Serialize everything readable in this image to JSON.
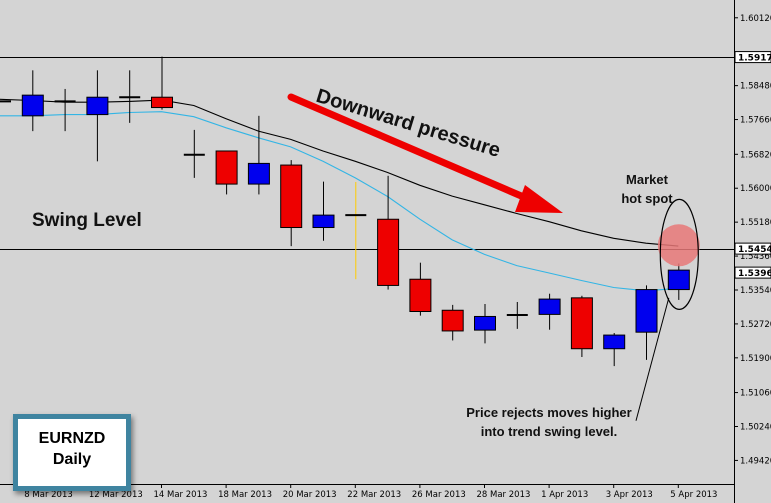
{
  "chart_data": {
    "type": "candlestick",
    "symbol": "EURNZD",
    "timeframe": "Daily",
    "colors": {
      "bull": "#0000ee",
      "bear": "#ee0000",
      "doji": "#ffcc00",
      "ema_fast": "#33b5e5",
      "ema_slow": "#000000",
      "hotspot": "#e87878"
    },
    "ylim": [
      1.4885,
      1.6055
    ],
    "yticks": [
      "1.60120",
      "1.58480",
      "1.57660",
      "1.56820",
      "1.56000",
      "1.55180",
      "1.54360",
      "1.53540",
      "1.52720",
      "1.51900",
      "1.51060",
      "1.50240",
      "1.49420"
    ],
    "xlabels": [
      "8 Mar 2013",
      "12 Mar 2013",
      "14 Mar 2013",
      "18 Mar 2013",
      "20 Mar 2013",
      "22 Mar 2013",
      "26 Mar 2013",
      "28 Mar 2013",
      "1 Apr 2013",
      "3 Apr 2013",
      "5 Apr 2013"
    ],
    "price_tags": [
      {
        "value": 1.5917,
        "label": "1.5917"
      },
      {
        "value": 1.5454,
        "label": "1.5454"
      },
      {
        "value": 1.5396,
        "label": "1.5396"
      }
    ],
    "horizontal_levels": [
      1.5917,
      1.5454
    ],
    "candles": [
      {
        "date": "7 Mar",
        "open": 1.581,
        "high": 1.581,
        "low": 1.581,
        "close": 1.581
      },
      {
        "date": "8 Mar",
        "open": 1.5775,
        "high": 1.5885,
        "low": 1.5738,
        "close": 1.5825
      },
      {
        "date": "11 Mar",
        "open": 1.581,
        "high": 1.584,
        "low": 1.5738,
        "close": 1.581
      },
      {
        "date": "12 Mar",
        "open": 1.5778,
        "high": 1.5885,
        "low": 1.5665,
        "close": 1.582
      },
      {
        "date": "13 Mar",
        "open": 1.5818,
        "high": 1.5885,
        "low": 1.5758,
        "close": 1.5822
      },
      {
        "date": "14 Mar",
        "open": 1.582,
        "high": 1.5918,
        "low": 1.579,
        "close": 1.5795
      },
      {
        "date": "15 Mar",
        "open": 1.5684,
        "high": 1.5741,
        "low": 1.5625,
        "close": 1.5678
      },
      {
        "date": "18 Mar",
        "open": 1.569,
        "high": 1.5691,
        "low": 1.5585,
        "close": 1.561
      },
      {
        "date": "19 Mar",
        "open": 1.561,
        "high": 1.5775,
        "low": 1.5585,
        "close": 1.566
      },
      {
        "date": "20 Mar",
        "open": 1.5656,
        "high": 1.5668,
        "low": 1.546,
        "close": 1.5505
      },
      {
        "date": "21 Mar",
        "open": 1.5505,
        "high": 1.5616,
        "low": 1.5473,
        "close": 1.5535
      },
      {
        "date": "22 Mar",
        "open": 1.5535,
        "high": 1.5615,
        "low": 1.538,
        "close": 1.5535
      },
      {
        "date": "25 Mar",
        "open": 1.5525,
        "high": 1.563,
        "low": 1.5355,
        "close": 1.5365
      },
      {
        "date": "26 Mar",
        "open": 1.538,
        "high": 1.542,
        "low": 1.5292,
        "close": 1.5302
      },
      {
        "date": "27 Mar",
        "open": 1.5305,
        "high": 1.5318,
        "low": 1.5232,
        "close": 1.5255
      },
      {
        "date": "28 Mar",
        "open": 1.5257,
        "high": 1.532,
        "low": 1.5225,
        "close": 1.529
      },
      {
        "date": "29 Mar",
        "open": 1.5292,
        "high": 1.5325,
        "low": 1.526,
        "close": 1.5295
      },
      {
        "date": "1 Apr",
        "open": 1.5295,
        "high": 1.5345,
        "low": 1.5258,
        "close": 1.5332
      },
      {
        "date": "2 Apr",
        "open": 1.5335,
        "high": 1.534,
        "low": 1.5192,
        "close": 1.5212
      },
      {
        "date": "3 Apr",
        "open": 1.5212,
        "high": 1.525,
        "low": 1.517,
        "close": 1.5245
      },
      {
        "date": "4 Apr",
        "open": 1.5252,
        "high": 1.5365,
        "low": 1.5185,
        "close": 1.5355
      },
      {
        "date": "5 Apr",
        "open": 1.5355,
        "high": 1.5418,
        "low": 1.533,
        "close": 1.5402
      }
    ],
    "ema_fast": [
      1.5775,
      1.5775,
      1.5778,
      1.5778,
      1.5783,
      1.5785,
      1.5773,
      1.5746,
      1.5722,
      1.57,
      1.5665,
      1.5625,
      1.558,
      1.5525,
      1.5475,
      1.544,
      1.5413,
      1.5395,
      1.5377,
      1.536,
      1.5352,
      1.5358
    ],
    "ema_slow": [
      1.5815,
      1.5812,
      1.5808,
      1.5808,
      1.581,
      1.5813,
      1.58,
      1.5768,
      1.5738,
      1.5718,
      1.569,
      1.5665,
      1.5638,
      1.5607,
      1.5581,
      1.556,
      1.5539,
      1.5519,
      1.5497,
      1.5479,
      1.5467,
      1.546
    ],
    "annotations": {
      "pressure": "Downward pressure",
      "swing": "Swing Level",
      "hotspot": "Market\nhot spot",
      "note": "Price rejects moves higher\ninto trend swing level."
    }
  }
}
